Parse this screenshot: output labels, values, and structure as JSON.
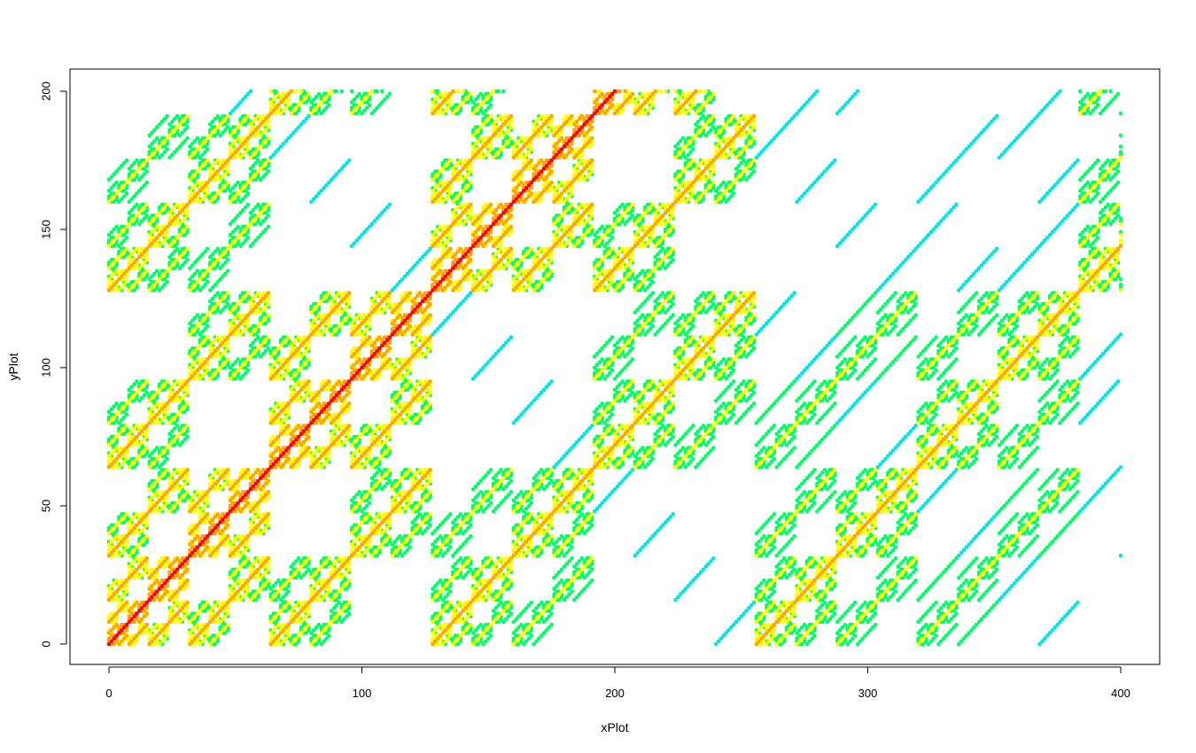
{
  "chart_data": {
    "type": "scatter",
    "title": "",
    "xlabel": "xPlot",
    "ylabel": "yPlot",
    "xlim": [
      0,
      400
    ],
    "ylim": [
      0,
      200
    ],
    "xticks": [
      0,
      100,
      200,
      300,
      400
    ],
    "yticks": [
      0,
      50,
      100,
      150,
      200
    ],
    "xtick_labels": [
      "0",
      "100",
      "200",
      "300",
      "400"
    ],
    "ytick_labels": [
      "0",
      "50",
      "100",
      "150",
      "200"
    ],
    "grid": false,
    "legend": "none",
    "description_of_points": "Integer grid points (x, y), 0<=x<=400, 0<=y<=200, plotted where (x AND y) shares bits; color encodes bit overlap along diagonals",
    "pattern": {
      "x_range": [
        0,
        400
      ],
      "y_range": [
        0,
        200
      ],
      "diagonal_main": "y = x, red",
      "rule": "point drawn when popcount(x XOR y) is low; color by popcount"
    },
    "colors": {
      "level0": "#ff0000",
      "level1": "#ffa500",
      "level2": "#ffff00",
      "level3": "#00ff66",
      "level4": "#00e5e5"
    }
  }
}
